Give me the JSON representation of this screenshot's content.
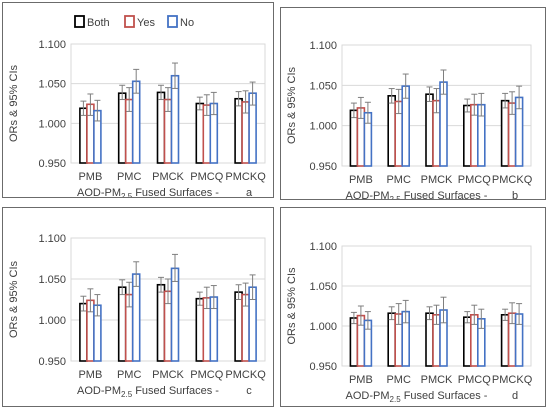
{
  "chart_data": [
    {
      "type": "bar",
      "ylabel": "ORs & 95% CIs",
      "xlabel": "AOD-PM2.5 Fused Surfaces -",
      "panel_label": "a",
      "categories": [
        "PMB",
        "PMC",
        "PMCK",
        "PMCQ",
        "PMCKQ"
      ],
      "ylim": [
        0.95,
        1.1
      ],
      "yticks": [
        "0.950",
        "1.000",
        "1.050",
        "1.100"
      ],
      "grid": true,
      "legend_position": "top",
      "series": [
        {
          "name": "Both",
          "color": "#000000",
          "values": [
            1.019,
            1.038,
            1.039,
            1.025,
            1.031
          ],
          "ci_low": [
            1.01,
            1.03,
            1.03,
            1.017,
            1.022
          ],
          "ci_high": [
            1.028,
            1.048,
            1.048,
            1.033,
            1.04
          ]
        },
        {
          "name": "Yes",
          "color": "#c0504d",
          "values": [
            1.024,
            1.03,
            1.03,
            1.023,
            1.027
          ],
          "ci_low": [
            1.01,
            1.015,
            1.015,
            1.01,
            1.013
          ],
          "ci_high": [
            1.037,
            1.045,
            1.045,
            1.036,
            1.041
          ]
        },
        {
          "name": "No",
          "color": "#4472c4",
          "values": [
            1.016,
            1.053,
            1.06,
            1.025,
            1.038
          ],
          "ci_low": [
            1.003,
            1.038,
            1.044,
            1.011,
            1.023
          ],
          "ci_high": [
            1.029,
            1.068,
            1.076,
            1.039,
            1.052
          ]
        }
      ]
    },
    {
      "type": "bar",
      "ylabel": "ORs & 95% CIs",
      "xlabel": "AOD-PM2.5 Fused Surfaces -",
      "panel_label": "b",
      "categories": [
        "PMB",
        "PMC",
        "PMCK",
        "PMCQ",
        "PMCKQ"
      ],
      "ylim": [
        0.95,
        1.1
      ],
      "yticks": [
        "0.950",
        "1.000",
        "1.050",
        "1.100"
      ],
      "grid": true,
      "series": [
        {
          "name": "Both",
          "color": "#000000",
          "values": [
            1.019,
            1.037,
            1.039,
            1.025,
            1.031
          ],
          "ci_low": [
            1.01,
            1.028,
            1.03,
            1.017,
            1.022
          ],
          "ci_high": [
            1.028,
            1.046,
            1.048,
            1.033,
            1.04
          ]
        },
        {
          "name": "Yes",
          "color": "#c0504d",
          "values": [
            1.022,
            1.03,
            1.031,
            1.026,
            1.028
          ],
          "ci_low": [
            1.009,
            1.015,
            1.016,
            1.013,
            1.014
          ],
          "ci_high": [
            1.035,
            1.045,
            1.046,
            1.039,
            1.042
          ]
        },
        {
          "name": "No",
          "color": "#4472c4",
          "values": [
            1.016,
            1.049,
            1.054,
            1.026,
            1.035
          ],
          "ci_low": [
            1.003,
            1.034,
            1.039,
            1.012,
            1.021
          ],
          "ci_high": [
            1.029,
            1.064,
            1.069,
            1.04,
            1.049
          ]
        }
      ]
    },
    {
      "type": "bar",
      "ylabel": "ORs & 95% CIs",
      "xlabel": "AOD-PM2.5 Fused Surfaces -",
      "panel_label": "c",
      "categories": [
        "PMB",
        "PMC",
        "PMCK",
        "PMCQ",
        "PMCKQ"
      ],
      "ylim": [
        0.95,
        1.1
      ],
      "yticks": [
        "0.950",
        "1.000",
        "1.050",
        "1.100"
      ],
      "grid": true,
      "series": [
        {
          "name": "Both",
          "color": "#000000",
          "values": [
            1.02,
            1.04,
            1.043,
            1.026,
            1.034
          ],
          "ci_low": [
            1.011,
            1.031,
            1.034,
            1.018,
            1.025
          ],
          "ci_high": [
            1.029,
            1.049,
            1.052,
            1.034,
            1.043
          ]
        },
        {
          "name": "Yes",
          "color": "#c0504d",
          "values": [
            1.024,
            1.031,
            1.035,
            1.027,
            1.031
          ],
          "ci_low": [
            1.01,
            1.016,
            1.02,
            1.014,
            1.017
          ],
          "ci_high": [
            1.038,
            1.046,
            1.05,
            1.04,
            1.045
          ]
        },
        {
          "name": "No",
          "color": "#4472c4",
          "values": [
            1.018,
            1.056,
            1.063,
            1.028,
            1.04
          ],
          "ci_low": [
            1.005,
            1.041,
            1.047,
            1.014,
            1.025
          ],
          "ci_high": [
            1.031,
            1.071,
            1.08,
            1.042,
            1.055
          ]
        }
      ]
    },
    {
      "type": "bar",
      "ylabel": "ORs & 95% CIs",
      "xlabel": "AOD-PM2.5 Fused Surfaces -",
      "panel_label": "d",
      "categories": [
        "PMB",
        "PMC",
        "PMCK",
        "PMCQ",
        "PMCKQ"
      ],
      "ylim": [
        0.95,
        1.1
      ],
      "yticks": [
        "0.950",
        "1.000",
        "1.050",
        "1.100"
      ],
      "grid": true,
      "series": [
        {
          "name": "Both",
          "color": "#000000",
          "values": [
            1.01,
            1.016,
            1.016,
            1.011,
            1.014
          ],
          "ci_low": [
            1.003,
            1.008,
            1.008,
            1.004,
            1.007
          ],
          "ci_high": [
            1.017,
            1.024,
            1.024,
            1.018,
            1.021
          ]
        },
        {
          "name": "Yes",
          "color": "#c0504d",
          "values": [
            1.013,
            1.015,
            1.014,
            1.014,
            1.016
          ],
          "ci_low": [
            1.001,
            1.002,
            1.002,
            1.002,
            1.003
          ],
          "ci_high": [
            1.025,
            1.028,
            1.026,
            1.026,
            1.029
          ]
        },
        {
          "name": "No",
          "color": "#4472c4",
          "values": [
            1.007,
            1.018,
            1.02,
            1.009,
            1.015
          ],
          "ci_low": [
            0.996,
            1.004,
            1.004,
            0.997,
            1.002
          ],
          "ci_high": [
            1.018,
            1.032,
            1.036,
            1.021,
            1.028
          ]
        }
      ]
    }
  ]
}
